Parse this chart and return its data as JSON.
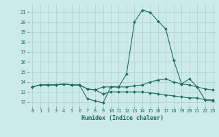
{
  "x": [
    0,
    1,
    2,
    3,
    4,
    5,
    6,
    7,
    8,
    9,
    10,
    11,
    12,
    13,
    14,
    15,
    16,
    17,
    18,
    19,
    20,
    21,
    22,
    23
  ],
  "line1": [
    13.5,
    13.7,
    13.7,
    13.7,
    13.8,
    13.7,
    13.7,
    12.3,
    12.1,
    11.9,
    13.5,
    13.5,
    14.8,
    20.0,
    21.2,
    21.0,
    20.1,
    19.3,
    16.2,
    13.8,
    14.3,
    13.5,
    12.2,
    12.2
  ],
  "line2": [
    13.5,
    13.7,
    13.7,
    13.7,
    13.8,
    13.7,
    13.7,
    13.3,
    13.2,
    13.5,
    13.5,
    13.5,
    13.5,
    13.6,
    13.7,
    14.0,
    14.2,
    14.3,
    14.0,
    13.8,
    13.7,
    13.5,
    13.3,
    13.2
  ],
  "line3": [
    13.5,
    13.7,
    13.7,
    13.7,
    13.8,
    13.7,
    13.7,
    13.3,
    13.2,
    12.8,
    13.0,
    13.0,
    13.0,
    13.0,
    13.0,
    12.9,
    12.8,
    12.7,
    12.6,
    12.5,
    12.4,
    12.4,
    12.2,
    12.1
  ],
  "bg_color": "#cceae7",
  "grid_color": "#b0d0cc",
  "line_color": "#1a6b60",
  "xlabel": "Humidex (Indice chaleur)",
  "ylim": [
    11.5,
    21.8
  ],
  "xlim": [
    -0.5,
    23.5
  ],
  "yticks": [
    12,
    13,
    14,
    15,
    16,
    17,
    18,
    19,
    20,
    21
  ],
  "xticks": [
    0,
    1,
    2,
    3,
    4,
    5,
    6,
    7,
    8,
    9,
    10,
    11,
    12,
    13,
    14,
    15,
    16,
    17,
    18,
    19,
    20,
    21,
    22,
    23
  ],
  "marker_size": 2.0,
  "line_width": 0.8
}
